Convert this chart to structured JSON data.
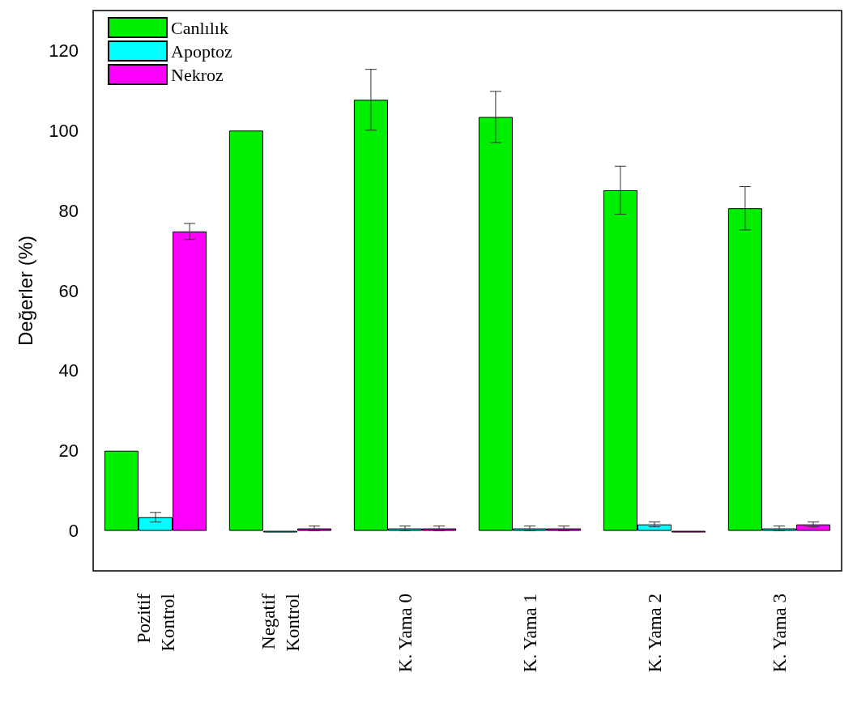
{
  "chart_data": {
    "type": "bar",
    "ylabel": "Değerler (%)",
    "categories": [
      "Pozitif\nKontrol",
      "Negatif\nKontrol",
      "K. Yama 0",
      "K. Yama 1",
      "K. Yama 2",
      "K. Yama 3"
    ],
    "series": [
      {
        "name": "Canlılık",
        "color": "#00ee00",
        "values": [
          20,
          100,
          107.7,
          103.4,
          85.1,
          80.6
        ],
        "errors": [
          null,
          null,
          7.6,
          6.4,
          6,
          5.4
        ]
      },
      {
        "name": "Apoptoz",
        "color": "#00ffff",
        "values": [
          3.4,
          -0.4,
          0.6,
          0.6,
          1.6,
          0.6
        ],
        "errors": [
          1.2,
          null,
          0.6,
          0.6,
          0.6,
          0.6
        ]
      },
      {
        "name": "Nekroz",
        "color": "#ff00ff",
        "values": [
          74.8,
          0.6,
          0.6,
          0.6,
          -0.4,
          1.6
        ],
        "errors": [
          2,
          0.6,
          0.6,
          0.6,
          null,
          0.6
        ]
      }
    ],
    "ylim": [
      -10,
      130
    ],
    "yticks": [
      0,
      20,
      40,
      60,
      80,
      100,
      120
    ],
    "grid": false,
    "legend": "top left"
  }
}
